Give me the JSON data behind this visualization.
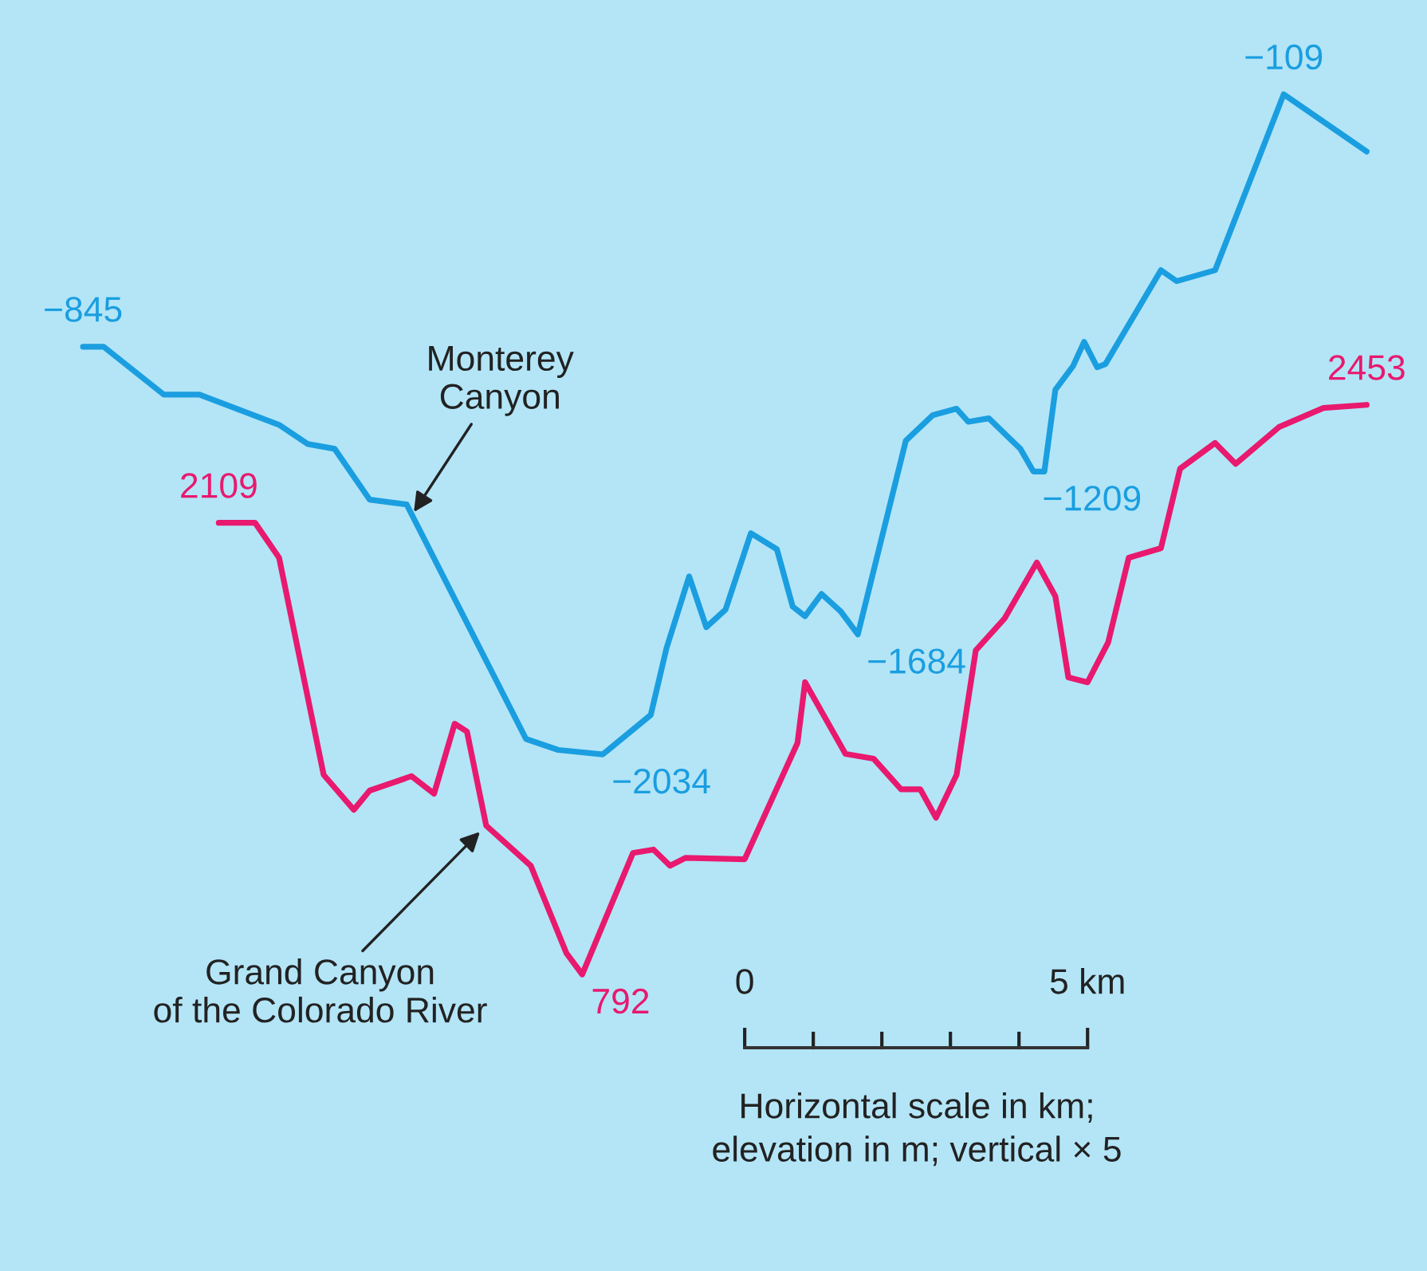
{
  "chart_data": {
    "type": "line",
    "xlabel": "Horizontal scale in km;\nelevation in m; vertical × 5",
    "xlim": [
      -10.86,
      9.95
    ],
    "xticks": [
      0,
      {
        "value": 5,
        "label": "5 km"
      }
    ],
    "tick_labels": "x",
    "grid": false,
    "annotations": [
      {
        "text": "Monterey\nCanyon",
        "x": -4.86,
        "y": -1338
      },
      "Grand Canyon\nof the Colorado River"
    ],
    "series": [
      {
        "color": "#1a9ee0",
        "x": [
          -9.65,
          -9.35,
          -8.47,
          -7.95,
          -6.79,
          -6.37,
          -5.98,
          -5.47,
          -4.93,
          -3.19,
          -2.72,
          -2.07,
          -1.37,
          -1.14,
          -0.81,
          -0.56,
          -0.28,
          0.09,
          0.47,
          0.7,
          0.88,
          1.12,
          1.4,
          1.65,
          2.35,
          2.74,
          3.09,
          3.26,
          3.56,
          4.02,
          4.21,
          4.37,
          4.53,
          4.79,
          4.95,
          5.14,
          5.26,
          6.07,
          6.3,
          6.86,
          7.86,
          9.07
        ],
        "values": [
          -845,
          -845,
          -985,
          -985,
          -1073,
          -1129,
          -1143,
          -1291,
          -1305,
          -1989,
          -2021,
          -2034,
          -1919,
          -1724,
          -1515,
          -1663,
          -1612,
          -1389,
          -1436,
          -1603,
          -1631,
          -1566,
          -1617,
          -1684,
          -1119,
          -1045,
          -1026,
          -1064,
          -1054,
          -1143,
          -1209,
          -1209,
          -971,
          -901,
          -831,
          -905,
          -896,
          -622,
          -654,
          -622,
          -109,
          -276
        ],
        "value_labels": [
          "−845",
          null,
          null,
          null,
          null,
          null,
          null,
          null,
          null,
          null,
          null,
          "−2034",
          null,
          null,
          null,
          null,
          null,
          null,
          null,
          null,
          null,
          null,
          null,
          "−1684",
          null,
          null,
          null,
          null,
          null,
          null,
          "−1209",
          null,
          null,
          null,
          null,
          null,
          null,
          null,
          null,
          null,
          "−109",
          null
        ]
      },
      {
        "color": "#e8196e",
        "axis": "y2",
        "x": [
          -7.67,
          -7.14,
          -6.79,
          -6.14,
          -5.7,
          -5.47,
          -4.86,
          -4.53,
          -4.23,
          -4.05,
          -3.77,
          -3.12,
          -2.6,
          -2.37,
          -1.63,
          -1.33,
          -1.09,
          -0.86,
          0,
          0.77,
          0.88,
          1.47,
          1.88,
          2.28,
          2.56,
          2.79,
          3.09,
          3.37,
          3.79,
          4.26,
          4.53,
          4.72,
          5.0,
          5.3,
          5.6,
          6.07,
          6.35,
          6.86,
          7.16,
          7.79,
          8.44,
          9.07
        ],
        "values": [
          2109,
          2109,
          2007,
          1374,
          1272,
          1328,
          1370,
          1319,
          1523,
          1500,
          1226,
          1109,
          854,
          792,
          1146,
          1156,
          1109,
          1132,
          1128,
          1467,
          1644,
          1435,
          1421,
          1332,
          1332,
          1249,
          1374,
          1737,
          1830,
          1993,
          1895,
          1658,
          1644,
          1760,
          2007,
          2035,
          2267,
          2342,
          2281,
          2388,
          2444,
          2453
        ],
        "value_labels": [
          "2109",
          null,
          null,
          null,
          null,
          null,
          null,
          null,
          null,
          null,
          null,
          null,
          null,
          "792",
          null,
          null,
          null,
          null,
          null,
          null,
          null,
          null,
          null,
          null,
          null,
          null,
          null,
          null,
          null,
          null,
          null,
          null,
          null,
          null,
          null,
          null,
          null,
          null,
          null,
          null,
          null,
          "2453"
        ]
      }
    ]
  }
}
